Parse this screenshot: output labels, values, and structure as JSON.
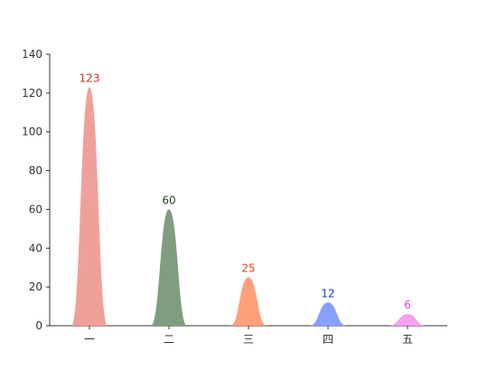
{
  "chart_data": {
    "type": "bar",
    "style": "peak-shaped bars",
    "categories": [
      "一",
      "二",
      "三",
      "四",
      "五"
    ],
    "values": [
      123,
      60,
      25,
      12,
      6
    ],
    "colors": [
      "#f0a09a",
      "#809e7f",
      "#ffa07a",
      "#87a0ff",
      "#f5a0f5"
    ],
    "label_colors": [
      "#d7302a",
      "#1a4d1a",
      "#e04a10",
      "#1a3fd0",
      "#d94bd9"
    ],
    "title": "",
    "xlabel": "",
    "ylabel": "",
    "ylim": [
      0,
      140
    ],
    "yticks": [
      0,
      20,
      40,
      60,
      80,
      100,
      120,
      140
    ],
    "grid": false,
    "legend": "none"
  }
}
